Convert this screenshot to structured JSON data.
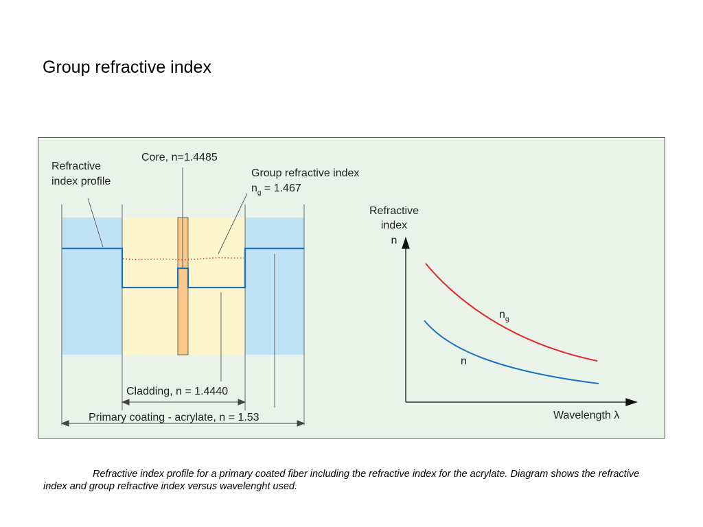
{
  "slide": {
    "title": "Group refractive index"
  },
  "colors": {
    "panel_bg": "#e9f3ea",
    "panel_border": "#555555",
    "coating_fill": "#bfe3f5",
    "cladding_fill": "#fdf6cc",
    "core_fill": "#f8c98a",
    "profile_line": "#1f6fb5",
    "group_index": "#e02a2a",
    "phase_index": "#1a73c0"
  },
  "profile": {
    "profile_label_line1": "Refractive",
    "profile_label_line2": "index profile",
    "core_label": "Core, n=1.4485",
    "group_label_line1": "Group refractive index",
    "group_label_symbol": "n",
    "group_label_subscript": "g",
    "group_label_value": " = 1.467",
    "cladding_label": "Cladding, n = 1.4440",
    "coating_label": "Primary coating - acrylate, n = 1.53"
  },
  "graph": {
    "ylabel_line1": "Refractive",
    "ylabel_line2": "index",
    "ylabel_symbol": "n",
    "xlabel": "Wavelength λ",
    "curve_ng_symbol": "n",
    "curve_ng_subscript": "g",
    "curve_n_label": "n"
  },
  "caption": {
    "text": "Refractive index profile for a primary coated fiber including the refractive index for the acrylate. Diagram shows the refractive index and group refractive index versus wavelenght used."
  }
}
